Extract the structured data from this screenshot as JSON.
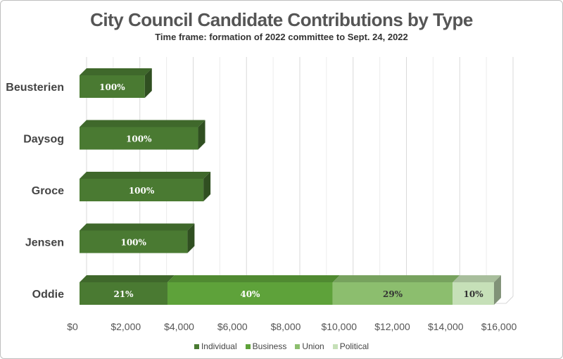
{
  "chart_data": {
    "type": "bar",
    "orientation": "horizontal",
    "stacked": true,
    "title": "City Council Candidate Contributions by Type",
    "subtitle": "Time frame: formation of 2022 committee to Sept. 24, 2022",
    "xlim": [
      0,
      16000
    ],
    "x_ticks": [
      "$0",
      "$2,000",
      "$4,000",
      "$6,000",
      "$8,000",
      "$10,000",
      "$12,000",
      "$14,000",
      "$16,000"
    ],
    "grid": true,
    "legend_position": "bottom",
    "categories": [
      "Beusterien",
      "Daysog",
      "Groce",
      "Jensen",
      "Oddie"
    ],
    "series": [
      {
        "name": "Individual",
        "color": "#4a7a32",
        "values": [
          2450,
          4450,
          4650,
          4050,
          3300
        ],
        "labels": [
          "100%",
          "100%",
          "100%",
          "100%",
          "21%"
        ]
      },
      {
        "name": "Business",
        "color": "#5ea23a",
        "values": [
          0,
          0,
          0,
          0,
          6200
        ],
        "labels": [
          "",
          "",
          "",
          "",
          "40%"
        ]
      },
      {
        "name": "Union",
        "color": "#8cbe6e",
        "values": [
          0,
          0,
          0,
          0,
          4500
        ],
        "labels": [
          "",
          "",
          "",
          "",
          "29%"
        ]
      },
      {
        "name": "Political",
        "color": "#c6e0b8",
        "values": [
          0,
          0,
          0,
          0,
          1550
        ],
        "labels": [
          "",
          "",
          "",
          "",
          "10%"
        ]
      }
    ]
  }
}
